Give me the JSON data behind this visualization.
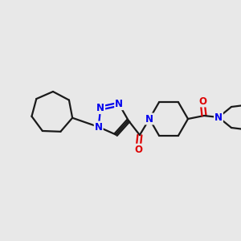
{
  "background_color": "#e8e8e8",
  "bond_color": "#1a1a1a",
  "nitrogen_color": "#0000ee",
  "oxygen_color": "#dd0000",
  "bond_width": 1.6,
  "font_size_atom": 8.5,
  "fig_width": 3.0,
  "fig_height": 3.0,
  "dpi": 100,
  "xlim": [
    0,
    300
  ],
  "ylim": [
    0,
    300
  ]
}
